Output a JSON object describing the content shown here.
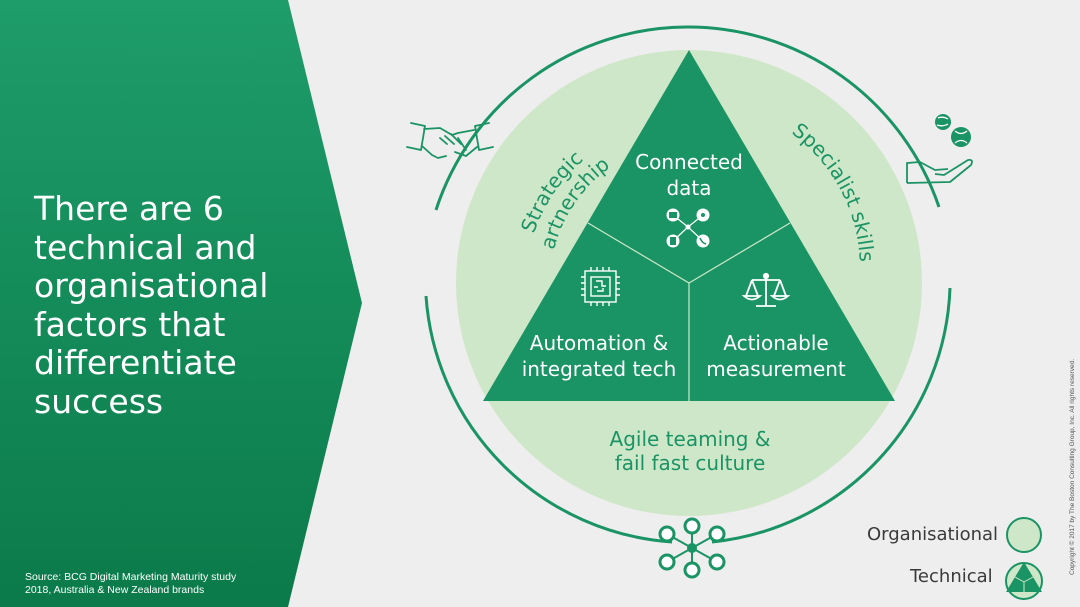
{
  "headline": [
    "There are 6",
    "technical and",
    "organisational",
    "factors that",
    "differentiate",
    "success"
  ],
  "source": [
    "Source: BCG Digital Marketing Maturity study",
    "2018, Australia & New Zealand brands"
  ],
  "copyright": "Copyright © 2017 by The Boston Consulting Group, Inc. All rights reserved.",
  "diagram": {
    "organisational": {
      "strategic_partnerships": [
        "Strategic",
        "partnerships"
      ],
      "specialist_skills": "Specialist skills",
      "agile_teaming": [
        "Agile teaming &",
        "fail fast culture"
      ]
    },
    "technical": {
      "connected_data": [
        "Connected",
        "data"
      ],
      "automation": [
        "Automation &",
        "integrated tech"
      ],
      "actionable_measurement": [
        "Actionable",
        "measurement"
      ]
    },
    "icons": [
      "handshake-icon",
      "giving-hand-icon",
      "network-icon",
      "data-devices-icon",
      "chip-icon",
      "scales-icon"
    ]
  },
  "legend": {
    "organisational": "Organisational",
    "technical": "Technical"
  },
  "colors": {
    "dark_green": "#1a9464",
    "light_green": "#cfe7c9",
    "background": "#eeeeee"
  }
}
